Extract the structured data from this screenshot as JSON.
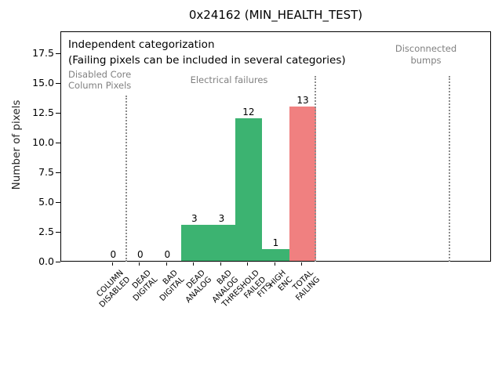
{
  "figure": {
    "title": "0x24162 (MIN_HEALTH_TEST)"
  },
  "chart_data": {
    "type": "bar",
    "title": "0x24162 (MIN_HEALTH_TEST)",
    "xlabel": "",
    "ylabel": "Number of pixels",
    "categories": [
      "COLUMN\nDISABLED",
      "DEAD\nDIGITAL",
      "BAD\nDIGITAL",
      "DEAD\nANALOG",
      "BAD\nANALOG",
      "THRESHOLD\nFAILED\nFITS",
      "HIGH\nENC",
      "TOTAL\nFAILING"
    ],
    "values": [
      0,
      0,
      0,
      3,
      3,
      12,
      1,
      13
    ],
    "bar_value_labels": [
      "0",
      "0",
      "0",
      "3",
      "3",
      "12",
      "1",
      "13"
    ],
    "bar_colors": [
      "#3cb371",
      "#3cb371",
      "#3cb371",
      "#3cb371",
      "#3cb371",
      "#3cb371",
      "#3cb371",
      "#f08080"
    ],
    "ytick_labels": [
      "0.0",
      "2.5",
      "5.0",
      "7.5",
      "10.0",
      "12.5",
      "15.0",
      "17.5"
    ],
    "ylim": [
      0,
      19.37
    ],
    "xlim": [
      -1.92,
      13.98
    ],
    "bar_width": 1.0,
    "grid": false,
    "legend": null,
    "separators_x": [
      0.5,
      7.5,
      12.44
    ],
    "annotations": {
      "note_line1": "Independent categorization",
      "note_line2": "(Failing pixels can be included in several categories)",
      "section_disabled": "Disabled Core\nColumn Pixels",
      "section_electrical": "Electrical failures",
      "section_disconnected": "Disconnected\nbumps"
    },
    "colors": {
      "bar_green": "#3cb371",
      "bar_red": "#f08080",
      "section_text": "#808080",
      "separator": "#8c8c8c"
    }
  }
}
